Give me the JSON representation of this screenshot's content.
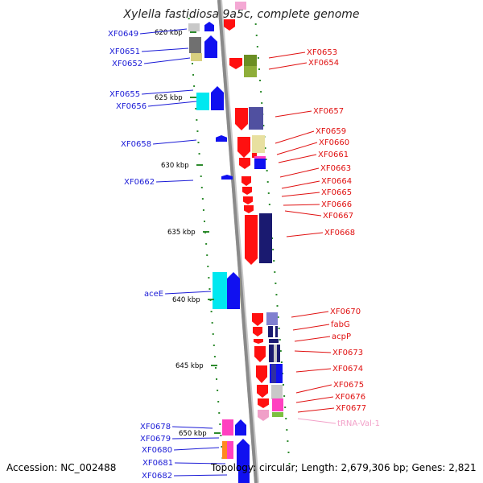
{
  "title": "Xylella fastidiosa 9a5c, complete genome",
  "footer": {
    "accession": "Accession: NC_002488",
    "summary": "Topology: circular; Length: 2,679,306 bp; Genes: 2,821"
  },
  "scale_labels": [
    "620 kbp",
    "625 kbp",
    "630 kbp",
    "635 kbp",
    "640 kbp",
    "645 kbp",
    "650 kbp"
  ],
  "colors": {
    "backbone": "#8a8a8a",
    "reverse_label": "#1a1ad6",
    "forward_label": "#e01010",
    "trna_label": "#f2a0c8",
    "tick": "#2e8b2e"
  },
  "left_genes": [
    "XF0649",
    "XF0651",
    "XF0652",
    "XF0655",
    "XF0656",
    "XF0658",
    "XF0662",
    "aceE",
    "XF0678",
    "XF0679",
    "XF0680",
    "XF0681",
    "XF0682"
  ],
  "right_genes": [
    "XF0653",
    "XF0654",
    "XF0657",
    "XF0659",
    "XF0660",
    "XF0661",
    "XF0663",
    "XF0664",
    "XF0665",
    "XF0666",
    "XF0667",
    "XF0668",
    "XF0670",
    "fabG",
    "acpP",
    "XF0673",
    "XF0674",
    "XF0675",
    "XF0676",
    "XF0677",
    "tRNA-Val-1"
  ]
}
